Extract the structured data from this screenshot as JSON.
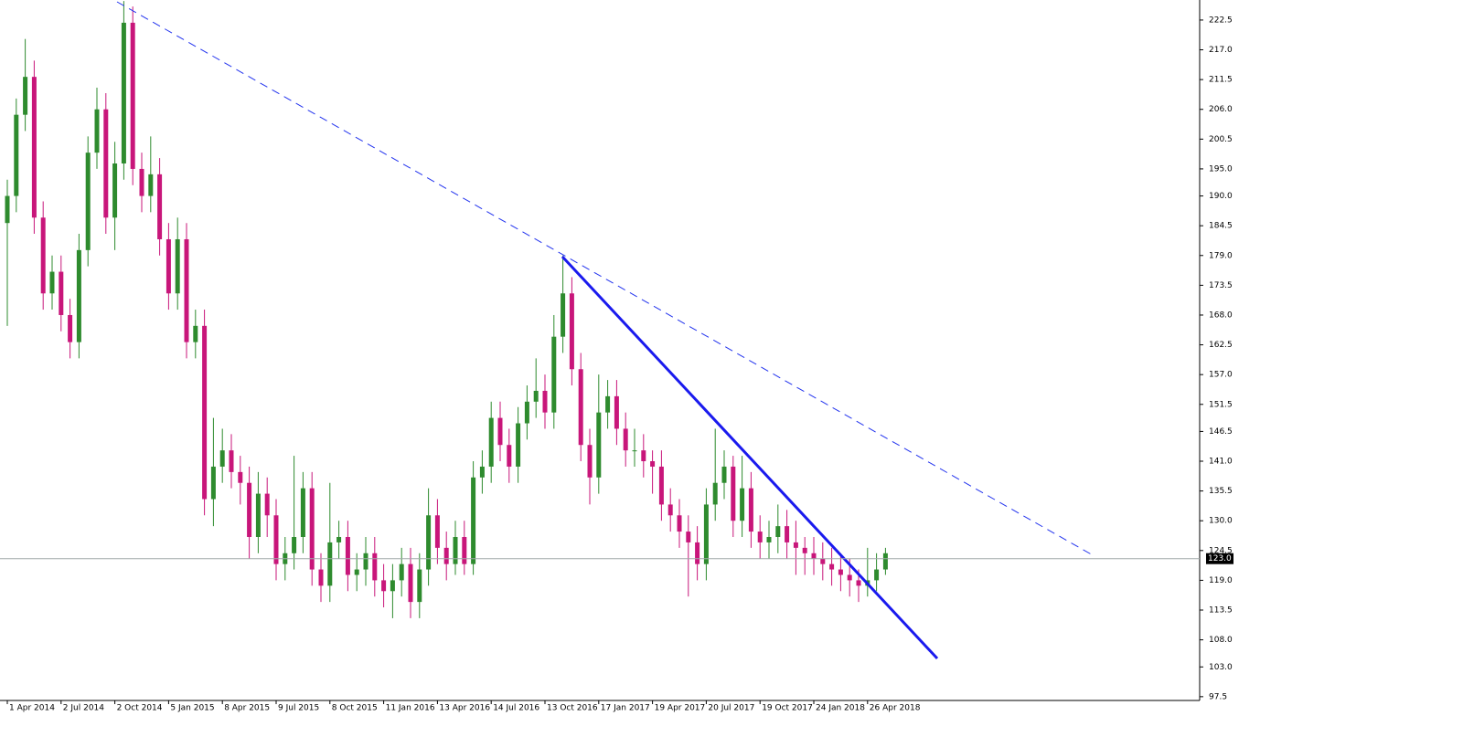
{
  "chart_data": {
    "type": "candlestick",
    "categories": [
      "1 Apr 2014",
      null,
      null,
      null,
      null,
      null,
      "2 Jul 2014",
      null,
      null,
      null,
      null,
      null,
      "2 Oct 2014",
      null,
      null,
      null,
      null,
      null,
      "5 Jan 2015",
      null,
      null,
      null,
      null,
      null,
      "8 Apr 2015",
      null,
      null,
      null,
      null,
      null,
      "9 Jul 2015",
      null,
      null,
      null,
      null,
      null,
      "8 Oct 2015",
      null,
      null,
      null,
      null,
      null,
      "11 Jan 2016",
      null,
      null,
      null,
      null,
      null,
      "13 Apr 2016",
      null,
      null,
      null,
      null,
      null,
      "14 Jul 2016",
      null,
      null,
      null,
      null,
      null,
      "13 Oct 2016",
      null,
      null,
      null,
      null,
      null,
      "17 Jan 2017",
      null,
      null,
      null,
      null,
      null,
      "19 Apr 2017",
      null,
      null,
      null,
      null,
      null,
      "20 Jul 2017",
      null,
      null,
      null,
      null,
      null,
      "19 Oct 2017",
      null,
      null,
      null,
      null,
      null,
      "24 Jan 2018",
      null,
      null,
      null,
      null,
      null,
      "26 Apr 2018",
      null,
      null
    ],
    "open": [
      185,
      190,
      205,
      212,
      186,
      172,
      176,
      168,
      163,
      180,
      198,
      206,
      186,
      196,
      222,
      195,
      190,
      194,
      182,
      172,
      182,
      163,
      166,
      134,
      140,
      143,
      139,
      137,
      127,
      135,
      131,
      122,
      124,
      127,
      136,
      121,
      118,
      126,
      127,
      120,
      121,
      124,
      119,
      117,
      119,
      122,
      115,
      121,
      131,
      125,
      122,
      127,
      122,
      138,
      140,
      149,
      144,
      140,
      148,
      152,
      154,
      150,
      164,
      172,
      158,
      144,
      138,
      150,
      153,
      147,
      143,
      143,
      141,
      140,
      133,
      131,
      128,
      126,
      122,
      133,
      137,
      140,
      130,
      136,
      128,
      126,
      127,
      129,
      126,
      125,
      124,
      123,
      122,
      121,
      120,
      119,
      118,
      119,
      121
    ],
    "high": [
      193,
      208,
      219,
      215,
      189,
      179,
      179,
      171,
      183,
      201,
      210,
      209,
      200,
      226,
      225,
      198,
      201,
      197,
      185,
      186,
      185,
      169,
      169,
      149,
      147,
      146,
      142,
      140,
      139,
      138,
      134,
      127,
      142,
      139,
      139,
      124,
      137,
      130,
      130,
      124,
      127,
      127,
      122,
      122,
      125,
      125,
      124,
      136,
      134,
      128,
      130,
      130,
      141,
      143,
      152,
      152,
      147,
      151,
      155,
      160,
      157,
      168,
      179,
      175,
      161,
      147,
      157,
      156,
      156,
      150,
      147,
      146,
      143,
      143,
      136,
      134,
      131,
      129,
      136,
      147,
      143,
      142,
      142,
      139,
      131,
      130,
      133,
      132,
      130,
      127,
      127,
      126,
      125,
      124,
      123,
      121,
      125,
      124,
      125
    ],
    "low": [
      166,
      187,
      202,
      183,
      169,
      169,
      165,
      160,
      160,
      177,
      195,
      183,
      180,
      193,
      192,
      187,
      187,
      179,
      169,
      169,
      160,
      160,
      131,
      129,
      137,
      136,
      133,
      123,
      124,
      127,
      119,
      119,
      121,
      124,
      118,
      115,
      115,
      123,
      117,
      117,
      118,
      116,
      114,
      112,
      116,
      112,
      112,
      118,
      122,
      119,
      120,
      120,
      120,
      135,
      137,
      141,
      137,
      137,
      145,
      149,
      147,
      147,
      161,
      155,
      141,
      133,
      135,
      147,
      144,
      140,
      140,
      138,
      135,
      130,
      128,
      125,
      116,
      119,
      119,
      130,
      134,
      127,
      127,
      125,
      123,
      123,
      124,
      123,
      120,
      120,
      120,
      119,
      118,
      117,
      116,
      115,
      116,
      117,
      120
    ],
    "close": [
      190,
      205,
      212,
      186,
      172,
      176,
      168,
      163,
      180,
      198,
      206,
      186,
      196,
      222,
      195,
      190,
      194,
      182,
      172,
      182,
      163,
      166,
      134,
      140,
      143,
      139,
      137,
      127,
      135,
      131,
      122,
      124,
      127,
      136,
      121,
      118,
      126,
      127,
      120,
      121,
      124,
      119,
      117,
      119,
      122,
      115,
      121,
      131,
      125,
      122,
      127,
      122,
      138,
      140,
      149,
      144,
      140,
      148,
      152,
      154,
      150,
      164,
      172,
      158,
      144,
      138,
      150,
      153,
      147,
      143,
      143,
      141,
      140,
      133,
      131,
      128,
      126,
      122,
      133,
      137,
      140,
      130,
      136,
      128,
      126,
      127,
      129,
      126,
      125,
      124,
      123,
      122,
      121,
      120,
      119,
      118,
      119,
      121,
      124
    ],
    "up_color": "#2e8b2e",
    "down_color": "#c8167a",
    "ylim": [
      96.8,
      226.2
    ],
    "yticks": [
      97.5,
      {
        "value": 103,
        "label": "103.0"
      },
      {
        "value": 108,
        "label": "108.0"
      },
      113.5,
      {
        "value": 119,
        "label": "119.0"
      },
      124.5,
      {
        "value": 130,
        "label": "130.0"
      },
      135.5,
      {
        "value": 141,
        "label": "141.0"
      },
      146.5,
      151.5,
      {
        "value": 157,
        "label": "157.0"
      },
      162.5,
      {
        "value": 168,
        "label": "168.0"
      },
      173.5,
      {
        "value": 179,
        "label": "179.0"
      },
      184.5,
      {
        "value": 190,
        "label": "190.0"
      },
      {
        "value": 195,
        "label": "195.0"
      },
      200.5,
      {
        "value": 206,
        "label": "206.0"
      },
      211.5,
      {
        "value": 217,
        "label": "217.0"
      },
      222.5
    ],
    "price_line": {
      "value": 123,
      "label": "123.0"
    }
  }
}
